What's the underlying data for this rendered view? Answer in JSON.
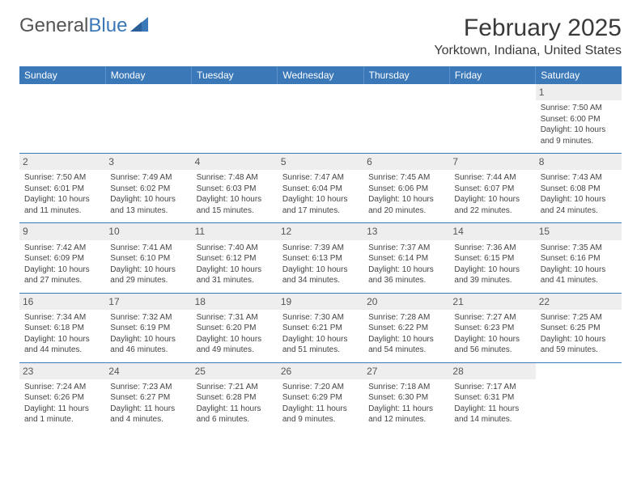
{
  "brand": {
    "name1": "General",
    "name2": "Blue"
  },
  "title": "February 2025",
  "location": "Yorktown, Indiana, United States",
  "header_bg": "#3b78b8",
  "columns": [
    "Sunday",
    "Monday",
    "Tuesday",
    "Wednesday",
    "Thursday",
    "Friday",
    "Saturday"
  ],
  "weeks": [
    [
      {
        "n": "",
        "sunrise": "",
        "sunset": "",
        "daylight": ""
      },
      {
        "n": "",
        "sunrise": "",
        "sunset": "",
        "daylight": ""
      },
      {
        "n": "",
        "sunrise": "",
        "sunset": "",
        "daylight": ""
      },
      {
        "n": "",
        "sunrise": "",
        "sunset": "",
        "daylight": ""
      },
      {
        "n": "",
        "sunrise": "",
        "sunset": "",
        "daylight": ""
      },
      {
        "n": "",
        "sunrise": "",
        "sunset": "",
        "daylight": ""
      },
      {
        "n": "1",
        "sunrise": "Sunrise: 7:50 AM",
        "sunset": "Sunset: 6:00 PM",
        "daylight": "Daylight: 10 hours and 9 minutes."
      }
    ],
    [
      {
        "n": "2",
        "sunrise": "Sunrise: 7:50 AM",
        "sunset": "Sunset: 6:01 PM",
        "daylight": "Daylight: 10 hours and 11 minutes."
      },
      {
        "n": "3",
        "sunrise": "Sunrise: 7:49 AM",
        "sunset": "Sunset: 6:02 PM",
        "daylight": "Daylight: 10 hours and 13 minutes."
      },
      {
        "n": "4",
        "sunrise": "Sunrise: 7:48 AM",
        "sunset": "Sunset: 6:03 PM",
        "daylight": "Daylight: 10 hours and 15 minutes."
      },
      {
        "n": "5",
        "sunrise": "Sunrise: 7:47 AM",
        "sunset": "Sunset: 6:04 PM",
        "daylight": "Daylight: 10 hours and 17 minutes."
      },
      {
        "n": "6",
        "sunrise": "Sunrise: 7:45 AM",
        "sunset": "Sunset: 6:06 PM",
        "daylight": "Daylight: 10 hours and 20 minutes."
      },
      {
        "n": "7",
        "sunrise": "Sunrise: 7:44 AM",
        "sunset": "Sunset: 6:07 PM",
        "daylight": "Daylight: 10 hours and 22 minutes."
      },
      {
        "n": "8",
        "sunrise": "Sunrise: 7:43 AM",
        "sunset": "Sunset: 6:08 PM",
        "daylight": "Daylight: 10 hours and 24 minutes."
      }
    ],
    [
      {
        "n": "9",
        "sunrise": "Sunrise: 7:42 AM",
        "sunset": "Sunset: 6:09 PM",
        "daylight": "Daylight: 10 hours and 27 minutes."
      },
      {
        "n": "10",
        "sunrise": "Sunrise: 7:41 AM",
        "sunset": "Sunset: 6:10 PM",
        "daylight": "Daylight: 10 hours and 29 minutes."
      },
      {
        "n": "11",
        "sunrise": "Sunrise: 7:40 AM",
        "sunset": "Sunset: 6:12 PM",
        "daylight": "Daylight: 10 hours and 31 minutes."
      },
      {
        "n": "12",
        "sunrise": "Sunrise: 7:39 AM",
        "sunset": "Sunset: 6:13 PM",
        "daylight": "Daylight: 10 hours and 34 minutes."
      },
      {
        "n": "13",
        "sunrise": "Sunrise: 7:37 AM",
        "sunset": "Sunset: 6:14 PM",
        "daylight": "Daylight: 10 hours and 36 minutes."
      },
      {
        "n": "14",
        "sunrise": "Sunrise: 7:36 AM",
        "sunset": "Sunset: 6:15 PM",
        "daylight": "Daylight: 10 hours and 39 minutes."
      },
      {
        "n": "15",
        "sunrise": "Sunrise: 7:35 AM",
        "sunset": "Sunset: 6:16 PM",
        "daylight": "Daylight: 10 hours and 41 minutes."
      }
    ],
    [
      {
        "n": "16",
        "sunrise": "Sunrise: 7:34 AM",
        "sunset": "Sunset: 6:18 PM",
        "daylight": "Daylight: 10 hours and 44 minutes."
      },
      {
        "n": "17",
        "sunrise": "Sunrise: 7:32 AM",
        "sunset": "Sunset: 6:19 PM",
        "daylight": "Daylight: 10 hours and 46 minutes."
      },
      {
        "n": "18",
        "sunrise": "Sunrise: 7:31 AM",
        "sunset": "Sunset: 6:20 PM",
        "daylight": "Daylight: 10 hours and 49 minutes."
      },
      {
        "n": "19",
        "sunrise": "Sunrise: 7:30 AM",
        "sunset": "Sunset: 6:21 PM",
        "daylight": "Daylight: 10 hours and 51 minutes."
      },
      {
        "n": "20",
        "sunrise": "Sunrise: 7:28 AM",
        "sunset": "Sunset: 6:22 PM",
        "daylight": "Daylight: 10 hours and 54 minutes."
      },
      {
        "n": "21",
        "sunrise": "Sunrise: 7:27 AM",
        "sunset": "Sunset: 6:23 PM",
        "daylight": "Daylight: 10 hours and 56 minutes."
      },
      {
        "n": "22",
        "sunrise": "Sunrise: 7:25 AM",
        "sunset": "Sunset: 6:25 PM",
        "daylight": "Daylight: 10 hours and 59 minutes."
      }
    ],
    [
      {
        "n": "23",
        "sunrise": "Sunrise: 7:24 AM",
        "sunset": "Sunset: 6:26 PM",
        "daylight": "Daylight: 11 hours and 1 minute."
      },
      {
        "n": "24",
        "sunrise": "Sunrise: 7:23 AM",
        "sunset": "Sunset: 6:27 PM",
        "daylight": "Daylight: 11 hours and 4 minutes."
      },
      {
        "n": "25",
        "sunrise": "Sunrise: 7:21 AM",
        "sunset": "Sunset: 6:28 PM",
        "daylight": "Daylight: 11 hours and 6 minutes."
      },
      {
        "n": "26",
        "sunrise": "Sunrise: 7:20 AM",
        "sunset": "Sunset: 6:29 PM",
        "daylight": "Daylight: 11 hours and 9 minutes."
      },
      {
        "n": "27",
        "sunrise": "Sunrise: 7:18 AM",
        "sunset": "Sunset: 6:30 PM",
        "daylight": "Daylight: 11 hours and 12 minutes."
      },
      {
        "n": "28",
        "sunrise": "Sunrise: 7:17 AM",
        "sunset": "Sunset: 6:31 PM",
        "daylight": "Daylight: 11 hours and 14 minutes."
      },
      {
        "n": "",
        "sunrise": "",
        "sunset": "",
        "daylight": ""
      }
    ]
  ]
}
